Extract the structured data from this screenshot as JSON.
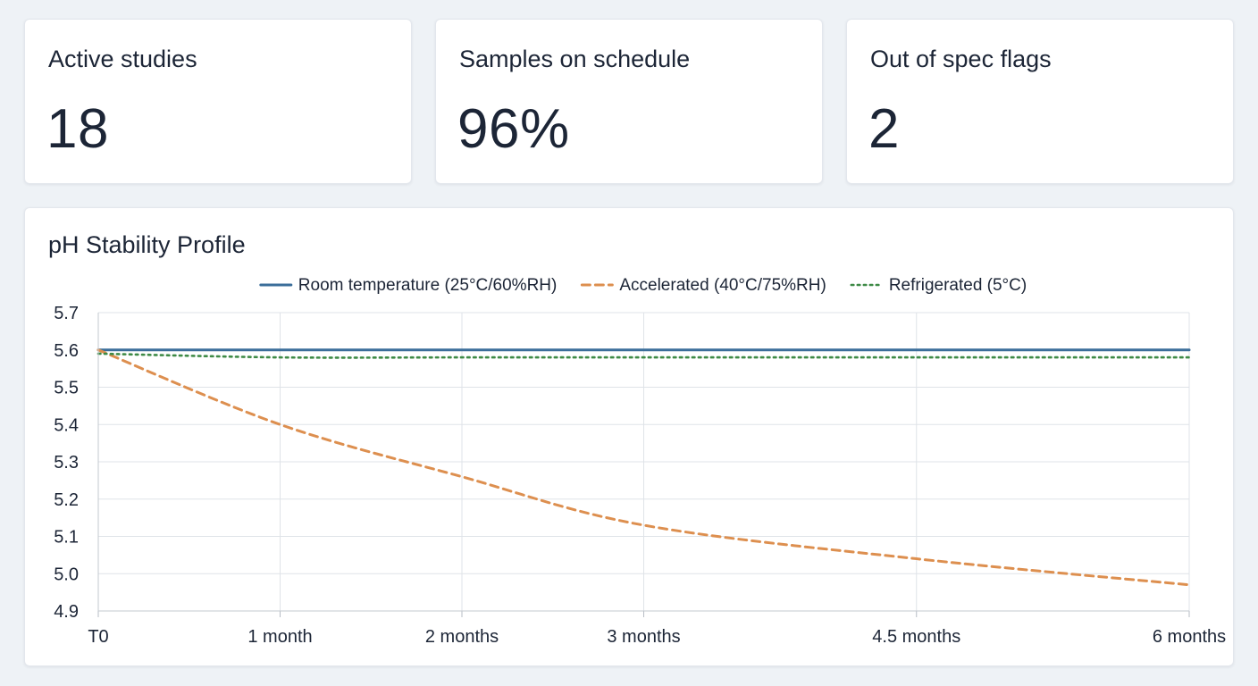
{
  "kpis": [
    {
      "label": "Active studies",
      "value": "18"
    },
    {
      "label": "Samples on schedule",
      "value": "96%"
    },
    {
      "label": "Out of spec flags",
      "value": "2"
    }
  ],
  "chart": {
    "title": "pH Stability Profile"
  },
  "chart_data": {
    "type": "line",
    "title": "pH Stability Profile",
    "xlabel": "",
    "ylabel": "",
    "categories": [
      "T0",
      "1 month",
      "2 months",
      "3 months",
      "4.5 months",
      "6 months"
    ],
    "x_months": [
      0,
      1,
      2,
      3,
      4.5,
      6
    ],
    "ylim": [
      4.9,
      5.7
    ],
    "yticks": [
      "5.7",
      "5.6",
      "5.5",
      "5.4",
      "5.3",
      "5.2",
      "5.1",
      "5.0",
      "4.9"
    ],
    "grid": true,
    "legend_position": "top-center",
    "series": [
      {
        "name": "Room temperature (25°C/60%RH)",
        "style": "solid",
        "color": "#3b6e9a",
        "values": [
          5.6,
          5.6,
          5.6,
          5.6,
          5.6,
          5.6
        ]
      },
      {
        "name": "Accelerated (40°C/75%RH)",
        "style": "dashed",
        "color": "#dd8f4f",
        "values": [
          5.6,
          5.4,
          5.26,
          5.13,
          5.04,
          4.97
        ]
      },
      {
        "name": "Refrigerated (5°C)",
        "style": "dotted",
        "color": "#3e8a46",
        "values": [
          5.59,
          5.58,
          5.58,
          5.58,
          5.58,
          5.58
        ]
      }
    ]
  }
}
